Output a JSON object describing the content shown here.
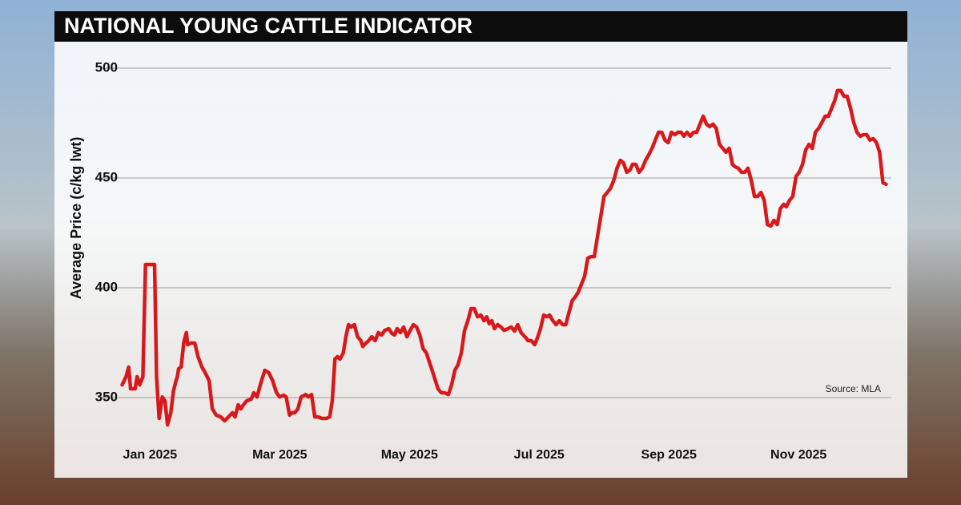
{
  "chart_data": {
    "type": "line",
    "title": "NATIONAL YOUNG CATTLE INDICATOR",
    "y_label": "Average Price (c/kg lwt)",
    "source": "Source: MLA",
    "color": "#d7191c",
    "grid": true,
    "xlim": [
      -0.77,
      11.43
    ],
    "xticks": [
      {
        "value": 0,
        "label": "Jan 2025"
      },
      {
        "value": 2,
        "label": "Mar 2025"
      },
      {
        "value": 4,
        "label": "May 2025"
      },
      {
        "value": 6,
        "label": "Jul 2025"
      },
      {
        "value": 8,
        "label": "Sep 2025"
      },
      {
        "value": 10,
        "label": "Nov 2025"
      }
    ],
    "ylim": [
      330,
      510
    ],
    "yticks": [
      350,
      400,
      450,
      500
    ],
    "x": [
      -0.43,
      -0.37,
      -0.33,
      -0.3,
      -0.23,
      -0.2,
      -0.16,
      -0.11,
      -0.07,
      -0.01,
      0.07,
      0.1,
      0.14,
      0.19,
      0.23,
      0.27,
      0.32,
      0.36,
      0.4,
      0.42,
      0.44,
      0.48,
      0.52,
      0.56,
      0.58,
      0.63,
      0.69,
      0.74,
      0.8,
      0.85,
      0.91,
      0.96,
      1.02,
      1.09,
      1.15,
      1.21,
      1.27,
      1.31,
      1.36,
      1.4,
      1.44,
      1.49,
      1.56,
      1.6,
      1.65,
      1.7,
      1.77,
      1.83,
      1.89,
      1.95,
      2.0,
      2.06,
      2.1,
      2.15,
      2.19,
      2.23,
      2.28,
      2.33,
      2.4,
      2.44,
      2.49,
      2.54,
      2.59,
      2.65,
      2.72,
      2.77,
      2.81,
      2.85,
      2.89,
      2.93,
      2.98,
      3.02,
      3.06,
      3.1,
      3.15,
      3.2,
      3.25,
      3.28,
      3.33,
      3.37,
      3.42,
      3.47,
      3.52,
      3.57,
      3.62,
      3.68,
      3.73,
      3.77,
      3.81,
      3.86,
      3.91,
      3.96,
      4.01,
      4.06,
      4.11,
      4.16,
      4.21,
      4.26,
      4.3,
      4.35,
      4.4,
      4.44,
      4.49,
      4.54,
      4.6,
      4.65,
      4.7,
      4.75,
      4.8,
      4.85,
      4.9,
      4.95,
      5.0,
      5.05,
      5.1,
      5.15,
      5.19,
      5.23,
      5.27,
      5.31,
      5.36,
      5.41,
      5.46,
      5.52,
      5.57,
      5.62,
      5.67,
      5.72,
      5.78,
      5.83,
      5.88,
      5.93,
      5.98,
      6.02,
      6.07,
      6.12,
      6.16,
      6.21,
      6.26,
      6.31,
      6.36,
      6.41,
      6.46,
      6.51,
      6.56,
      6.6,
      6.65,
      6.7,
      6.75,
      6.8,
      6.85,
      6.9,
      6.95,
      7.0,
      7.05,
      7.1,
      7.15,
      7.2,
      7.25,
      7.3,
      7.35,
      7.4,
      7.44,
      7.49,
      7.54,
      7.59,
      7.64,
      7.69,
      7.74,
      7.79,
      7.84,
      7.89,
      7.94,
      7.99,
      8.04,
      8.09,
      8.14,
      8.19,
      8.23,
      8.28,
      8.33,
      8.38,
      8.43,
      8.48,
      8.53,
      8.58,
      8.63,
      8.68,
      8.73,
      8.78,
      8.83,
      8.88,
      8.93,
      8.98,
      9.02,
      9.07,
      9.12,
      9.17,
      9.22,
      9.27,
      9.32,
      9.37,
      9.42,
      9.47,
      9.52,
      9.57,
      9.62,
      9.67,
      9.72,
      9.77,
      9.81,
      9.86,
      9.91,
      9.96,
      10.01,
      10.06,
      10.11,
      10.16,
      10.21,
      10.26,
      10.31,
      10.36,
      10.41,
      10.46,
      10.51,
      10.56,
      10.6,
      10.65,
      10.7,
      10.75,
      10.8,
      10.85,
      10.9,
      10.95,
      11.0,
      11.05,
      11.1,
      11.15,
      11.2,
      11.25,
      11.3,
      11.35
    ],
    "values": [
      355.8,
      359.5,
      363.9,
      354,
      354,
      359.5,
      355.8,
      359.5,
      410.6,
      410.6,
      410.6,
      359.5,
      340.5,
      350.3,
      348.5,
      337.6,
      343.1,
      352.9,
      357.7,
      359.5,
      363.1,
      363.9,
      375.2,
      379.6,
      374.1,
      374.8,
      374.8,
      368.6,
      363.9,
      361.3,
      357.7,
      344.9,
      342,
      341.2,
      339.4,
      341.2,
      343.1,
      341.2,
      346.7,
      344.9,
      346.7,
      348.5,
      349.3,
      352.2,
      350.3,
      355.8,
      362.4,
      361.3,
      357.7,
      352.2,
      350.3,
      351.1,
      350.3,
      342,
      343.1,
      343.1,
      344.9,
      350.3,
      351.4,
      350.3,
      351.4,
      341.2,
      341.2,
      340.5,
      340.5,
      341.2,
      348.5,
      367.5,
      368.6,
      367.5,
      370.4,
      377.7,
      383.2,
      382.1,
      383.2,
      377.7,
      375.9,
      373.3,
      374.8,
      375.9,
      377.7,
      375.9,
      379.6,
      378.5,
      380.6,
      381.4,
      379.2,
      378.5,
      381.4,
      379.6,
      382.1,
      377.7,
      380.6,
      383.2,
      382.1,
      378.5,
      372.3,
      370.4,
      366.8,
      362.4,
      357.7,
      354,
      352.2,
      352.2,
      351.4,
      355.8,
      362.4,
      365,
      370.4,
      380.6,
      385,
      390.5,
      390.5,
      386.8,
      387.6,
      385,
      386.8,
      383.6,
      385,
      381.4,
      383.2,
      382.1,
      380.6,
      381.4,
      382.1,
      380.3,
      383.2,
      379.6,
      377.7,
      375.9,
      375.9,
      374.1,
      377.7,
      381.4,
      387.6,
      386.8,
      387.6,
      385,
      383.2,
      385,
      383.2,
      383.2,
      388.8,
      394.2,
      396,
      397.8,
      401.5,
      405.1,
      413.5,
      414.2,
      414.2,
      423.4,
      432.5,
      441.6,
      443.4,
      445.3,
      448.9,
      454.4,
      458,
      456.9,
      452.6,
      453.6,
      456.2,
      456.2,
      452.6,
      454.4,
      458,
      460.6,
      463.5,
      467.2,
      470.8,
      470.8,
      467.2,
      466.1,
      470.8,
      469.7,
      470.8,
      470.8,
      469,
      470.8,
      469,
      470.8,
      470.8,
      474.5,
      478.1,
      474.5,
      473.4,
      474.5,
      472.6,
      465.3,
      463.5,
      461.7,
      463.5,
      456.2,
      455.1,
      454.4,
      452.6,
      452.6,
      454.4,
      448.9,
      441.6,
      441.6,
      443.4,
      439.8,
      428.8,
      428.1,
      430.7,
      428.8,
      436.1,
      438,
      436.9,
      439.8,
      441.6,
      450.7,
      452.6,
      456.2,
      462.8,
      465.3,
      463.5,
      470.8,
      472.6,
      475.3,
      478.1,
      478.1,
      481.8,
      485.4,
      489.8,
      489.8,
      487.2,
      487.2,
      481.8,
      475.3,
      470.8,
      469,
      469.7,
      469.7,
      467.2,
      467.9,
      466.1,
      461.7,
      447.8,
      447.1
    ]
  }
}
